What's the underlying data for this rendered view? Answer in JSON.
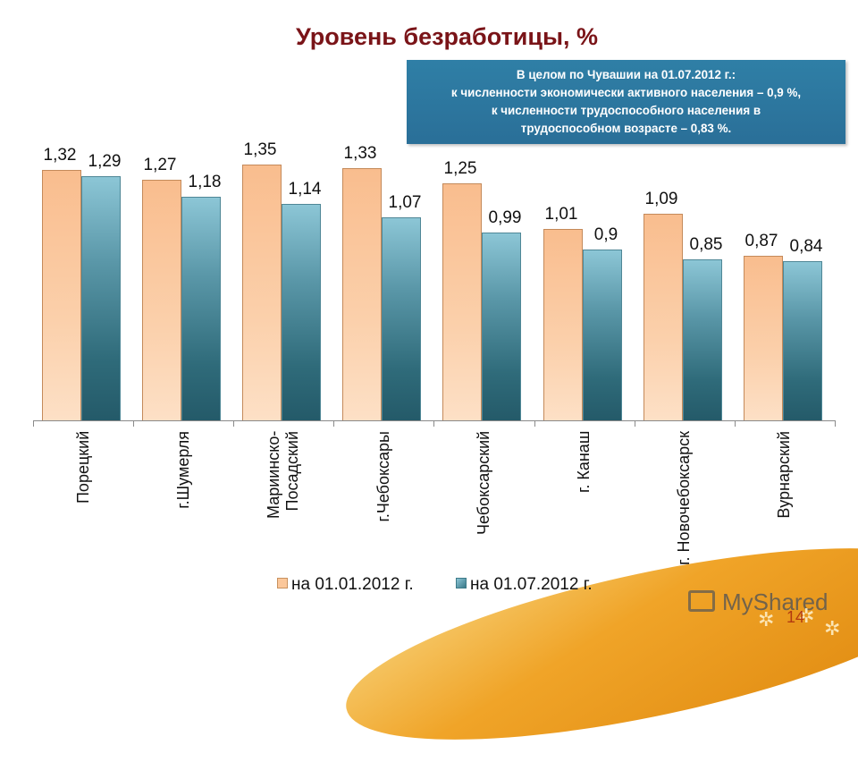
{
  "slide": {
    "title": "Уровень безработицы, %",
    "page_number": "14",
    "watermark": "MyShared"
  },
  "infobox": {
    "lines": [
      "В целом по Чувашии на 01.07.2012 г.:",
      "к численности экономически активного населения – 0,9 %,",
      "к численности трудоспособного населения в",
      "трудоспособном возрасте – 0,83 %."
    ]
  },
  "legend": {
    "items": [
      {
        "label": "на 01.01.2012 г.",
        "color": "#fbc79a"
      },
      {
        "label": "на 01.07.2012 г.",
        "color": "#4a8a9a"
      }
    ]
  },
  "chart_data": {
    "type": "bar",
    "title": "Уровень безработицы, %",
    "xlabel": "",
    "ylabel": "",
    "ylim": [
      0,
      1.4
    ],
    "grid": false,
    "legend_position": "bottom",
    "categories": [
      "Порецкий",
      "г.Шумерля",
      "Мариинско-Посадский",
      "г.Чебоксары",
      "Чебоксарский",
      "г. Канаш",
      "г. Новочебоксарск",
      "Вурнарский"
    ],
    "category_display": [
      [
        "Порецкий"
      ],
      [
        "г.Шумерля"
      ],
      [
        "Мариинско-",
        "Посадский"
      ],
      [
        "г.Чебоксары"
      ],
      [
        "Чебоксарский"
      ],
      [
        "г. Канаш"
      ],
      [
        "г. Новочебоксарск"
      ],
      [
        "Вурнарский"
      ]
    ],
    "series": [
      {
        "name": "на 01.01.2012 г.",
        "values": [
          1.32,
          1.27,
          1.35,
          1.33,
          1.25,
          1.01,
          1.09,
          0.87
        ],
        "labels": [
          "1,32",
          "1,27",
          "1,35",
          "1,33",
          "1,25",
          "1,01",
          "1,09",
          "0,87"
        ],
        "color": "#fbc79a"
      },
      {
        "name": "на 01.07.2012 г.",
        "values": [
          1.29,
          1.18,
          1.14,
          1.07,
          0.99,
          0.9,
          0.85,
          0.84
        ],
        "labels": [
          "1,29",
          "1,18",
          "1,14",
          "1,07",
          "0,99",
          "0,9",
          "0,85",
          "0,84"
        ],
        "color": "#4a8a9a"
      }
    ]
  }
}
